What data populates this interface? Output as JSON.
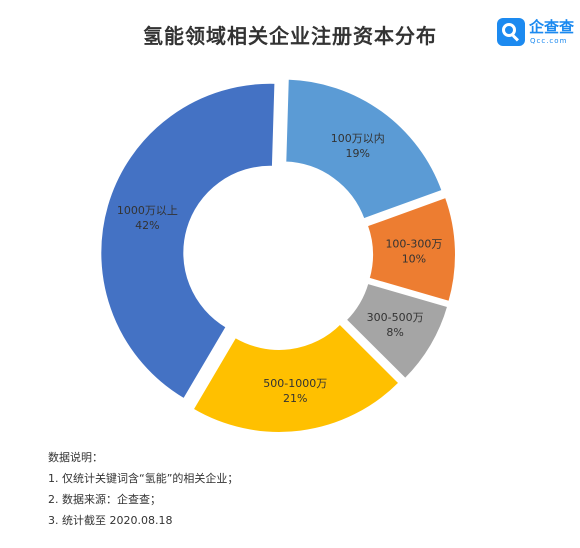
{
  "title": "氢能领域相关企业注册资本分布",
  "logo": {
    "name": "企查查",
    "sub": "Qcc.com"
  },
  "chart_data": {
    "type": "pie",
    "style": "donut",
    "title": "氢能领域相关企业注册资本分布",
    "slices": [
      {
        "label": "100万以内",
        "value": 19,
        "value_label": "19%",
        "color": "#5b9bd5"
      },
      {
        "label": "100-300万",
        "value": 10,
        "value_label": "10%",
        "color": "#ed7d31"
      },
      {
        "label": "300-500万",
        "value": 8,
        "value_label": "8%",
        "color": "#a5a5a5"
      },
      {
        "label": "500-1000万",
        "value": 21,
        "value_label": "21%",
        "color": "#ffc000"
      },
      {
        "label": "1000万以上",
        "value": 42,
        "value_label": "42%",
        "color": "#4472c4"
      }
    ]
  },
  "notes": {
    "heading": "数据说明：",
    "items": [
      "1. 仅统计关键词含“氢能”的相关企业；",
      "2. 数据来源：企查查；",
      "3. 统计截至 2020.08.18"
    ]
  }
}
